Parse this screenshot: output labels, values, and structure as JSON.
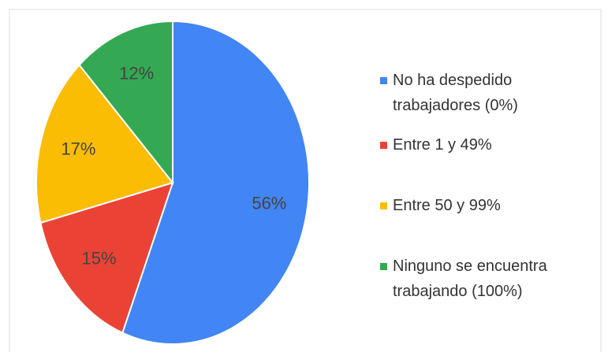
{
  "chart_data": {
    "type": "pie",
    "categories": [
      "No ha despedido trabajadores (0%)",
      "Entre 1 y 49%",
      "Entre 50 y 99%",
      "Ninguno se encuentra trabajando (100%)"
    ],
    "values": [
      56,
      15,
      17,
      12
    ],
    "value_labels": [
      "56%",
      "15%",
      "17%",
      "12%"
    ],
    "colors": [
      "#4285f4",
      "#ea4335",
      "#fbbc04",
      "#34a853"
    ]
  }
}
